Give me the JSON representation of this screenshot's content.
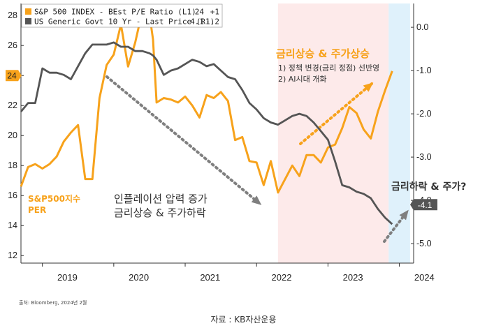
{
  "chart_data": {
    "type": "line",
    "x_ticks": [
      "2019",
      "2020",
      "2021",
      "2022",
      "2023",
      "2024"
    ],
    "y_left": {
      "min": 11.5,
      "max": 28.8,
      "ticks": [
        12,
        14,
        16,
        18,
        20,
        22,
        24,
        26,
        28
      ]
    },
    "y_right": {
      "min": -5.45,
      "max": 0.55,
      "ticks": [
        "0.0",
        "-1.0",
        "-2.0",
        "-3.0",
        "-4.0",
        "-5.0"
      ],
      "tick_values": [
        0,
        -1,
        -2,
        -3,
        -4,
        -5
      ]
    },
    "legend": [
      {
        "label": "S&P 500 INDEX - BEst P/E Ratio (L1)",
        "last": "24",
        "change": "+1",
        "color": "#f7a21b"
      },
      {
        "label": "US Generic Govt 10 Yr - Last Price (R1)",
        "last": "-4.1",
        "change": "-.2",
        "color": "#555555"
      }
    ],
    "x": [
      2018.7,
      2018.8,
      2018.9,
      2019.0,
      2019.1,
      2019.2,
      2019.3,
      2019.4,
      2019.5,
      2019.6,
      2019.7,
      2019.8,
      2019.9,
      2020.0,
      2020.1,
      2020.2,
      2020.3,
      2020.4,
      2020.5,
      2020.55,
      2020.6,
      2020.7,
      2020.8,
      2020.9,
      2021.0,
      2021.1,
      2021.2,
      2021.3,
      2021.4,
      2021.5,
      2021.6,
      2021.7,
      2021.8,
      2021.9,
      2022.0,
      2022.1,
      2022.2,
      2022.3,
      2022.4,
      2022.5,
      2022.6,
      2022.7,
      2022.8,
      2022.9,
      2023.0,
      2023.1,
      2023.2,
      2023.3,
      2023.4,
      2023.5,
      2023.6,
      2023.7,
      2023.8,
      2023.9
    ],
    "series": [
      {
        "name": "S&P500지수 PER",
        "axis": "left",
        "color": "#f7a21b",
        "values": [
          16.6,
          17.9,
          18.1,
          17.8,
          18.1,
          18.6,
          19.6,
          20.2,
          20.7,
          17.1,
          17.1,
          22.5,
          24.7,
          25.4,
          27.4,
          24.6,
          26.2,
          28.3,
          28.1,
          26.4,
          22.2,
          22.5,
          22.4,
          22.2,
          22.6,
          22.0,
          21.2,
          22.7,
          22.5,
          22.9,
          22.3,
          19.7,
          19.9,
          18.3,
          18.2,
          16.7,
          18.3,
          16.2,
          17.1,
          18.0,
          17.3,
          18.7,
          18.7,
          18.2,
          19.2,
          19.4,
          20.5,
          21.9,
          21.5,
          20.4,
          19.8,
          21.6,
          23.0,
          24.3
        ]
      },
      {
        "name": "US 10Y",
        "axis": "right",
        "color": "#555555",
        "values": [
          -1.95,
          -1.75,
          -1.75,
          -0.95,
          -1.05,
          -1.05,
          -1.1,
          -1.2,
          -0.9,
          -0.6,
          -0.4,
          -0.4,
          -0.4,
          -0.35,
          -0.45,
          -0.45,
          -0.55,
          -0.55,
          -0.6,
          -0.65,
          -0.75,
          -1.1,
          -1.0,
          -0.95,
          -0.85,
          -0.75,
          -0.8,
          -0.9,
          -0.85,
          -1.0,
          -1.15,
          -1.2,
          -1.45,
          -1.75,
          -1.9,
          -2.1,
          -2.2,
          -2.25,
          -2.15,
          -2.05,
          -2.0,
          -2.05,
          -2.2,
          -2.4,
          -2.6,
          -3.1,
          -3.65,
          -3.7,
          -3.8,
          -3.85,
          -3.95,
          -4.2,
          -4.4,
          -4.55
        ]
      }
    ],
    "shaded_regions": [
      {
        "from": 2022.3,
        "to": 2023.85,
        "color": "#fdeaea"
      },
      {
        "from": 2023.85,
        "to": 2024.15,
        "color": "#dff1fb"
      }
    ],
    "value_tags": [
      {
        "text": "24",
        "axis": "left",
        "value": 24,
        "color": "#f7a21b"
      },
      {
        "text": "-4.1",
        "axis": "right",
        "value": -4.1,
        "color": "#555555"
      }
    ],
    "annotations": {
      "orange_title": "금리상승 & 주가상승",
      "orange_line1": "1) 정책 변경(금리 정점) 선반영",
      "orange_line2": "2) AI시대 개화",
      "down_line1": "인플레이션 압력 증가",
      "down_line2": "금리상승 & 주가하락",
      "question": "금리하락 & 주가?",
      "per_label_1": "S&P500지수",
      "per_label_2": "PER"
    },
    "source_small": "출처: Bloomberg, 2024년 2월"
  },
  "caption": "자료 : KB자산운용"
}
